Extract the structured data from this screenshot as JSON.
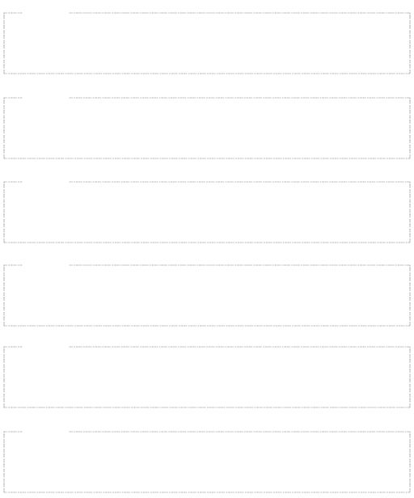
{
  "page": {
    "background": "#ffffff",
    "line_color": "#b8b8b8"
  },
  "panels": [
    {
      "name": "panel-1"
    },
    {
      "name": "panel-2"
    },
    {
      "name": "panel-3"
    },
    {
      "name": "panel-4"
    },
    {
      "name": "panel-5"
    },
    {
      "name": "panel-6"
    }
  ]
}
